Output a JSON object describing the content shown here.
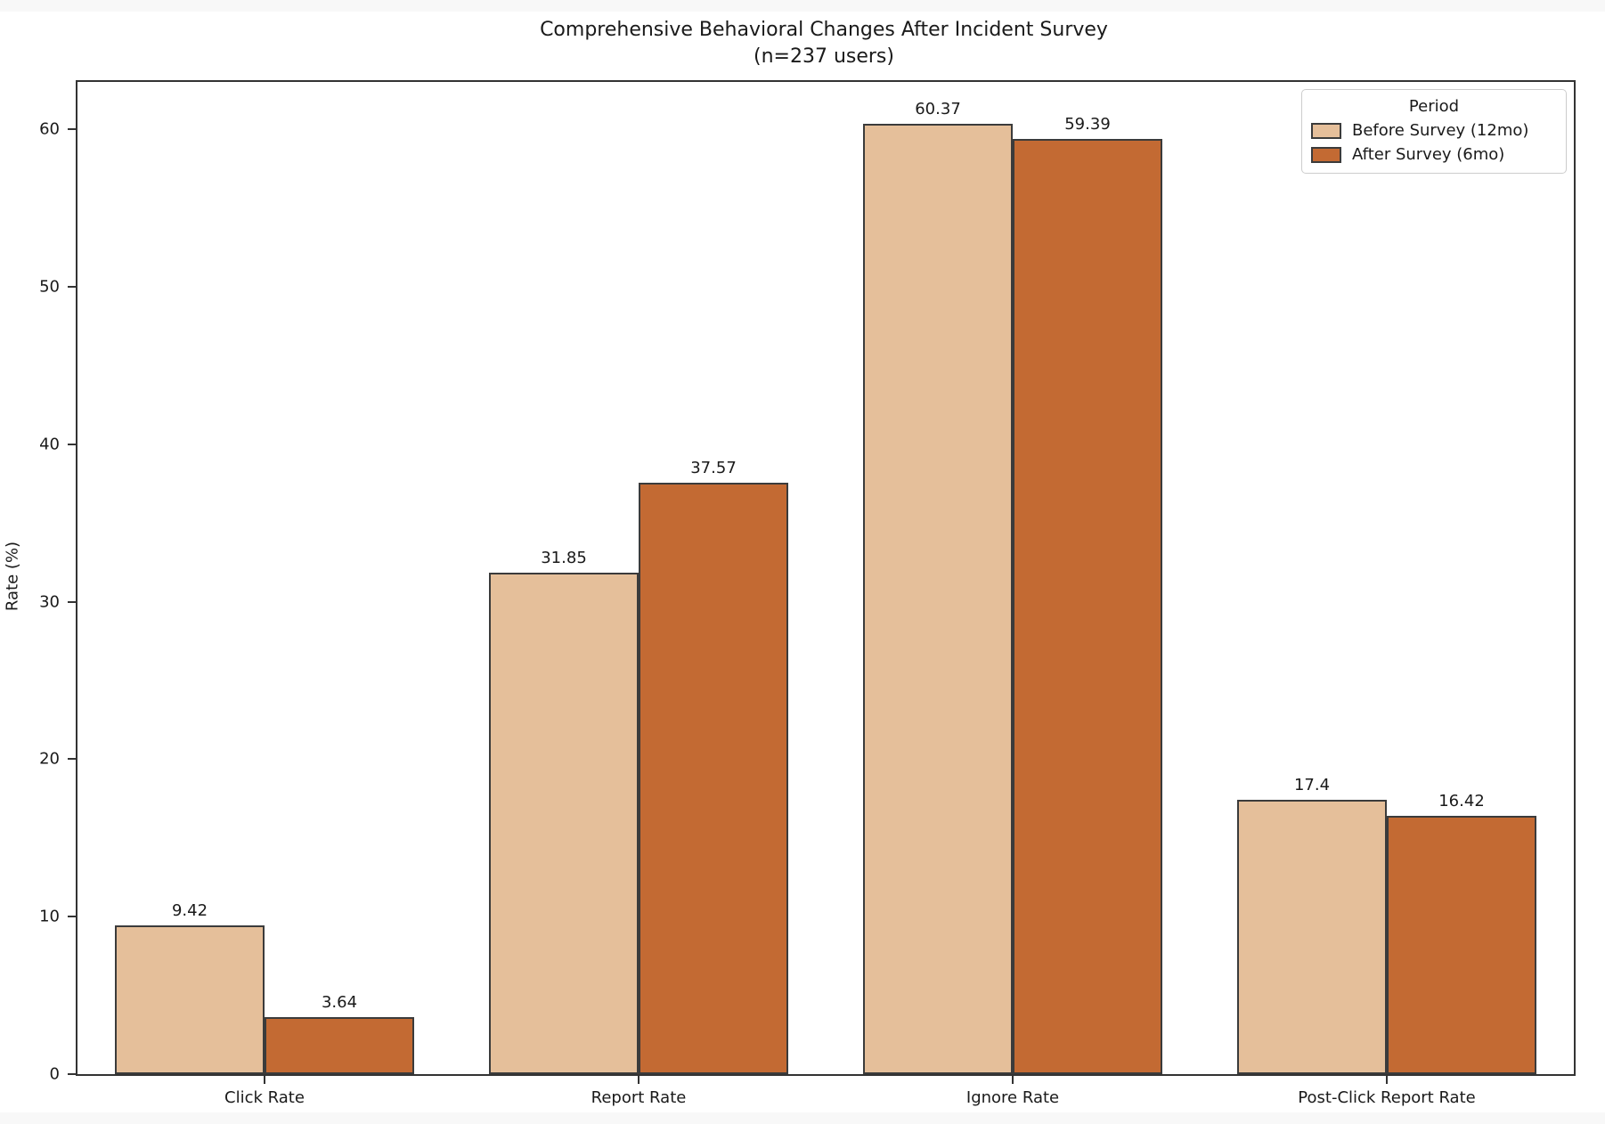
{
  "page": {
    "background_color": "#f8f8f8",
    "figure_background_color": "#ffffff"
  },
  "chart_data": {
    "type": "bar",
    "title": "Comprehensive Behavioral Changes After Incident Survey",
    "subtitle": "(n=237 users)",
    "xlabel": "",
    "ylabel": "Rate (%)",
    "categories": [
      "Click Rate",
      "Report Rate",
      "Ignore Rate",
      "Post-Click Report Rate"
    ],
    "series": [
      {
        "name": "Before Survey (12mo)",
        "color": "#e5bf9a",
        "values": [
          9.42,
          31.85,
          60.37,
          17.4
        ]
      },
      {
        "name": "After Survey (6mo)",
        "color": "#c36a33",
        "values": [
          3.64,
          37.57,
          59.39,
          16.42
        ]
      }
    ],
    "value_labels": [
      [
        "9.42",
        "31.85",
        "60.37",
        "17.4"
      ],
      [
        "3.64",
        "37.57",
        "59.39",
        "16.42"
      ]
    ],
    "yticks": [
      0,
      10,
      20,
      30,
      40,
      50,
      60
    ],
    "ylim": [
      0,
      63
    ],
    "grid": false,
    "legend_title": "Period",
    "legend_position": "upper right",
    "bar_edge_color": "#3b3b3b",
    "axis_color": "#333333",
    "text_color": "#1a1a1a"
  }
}
